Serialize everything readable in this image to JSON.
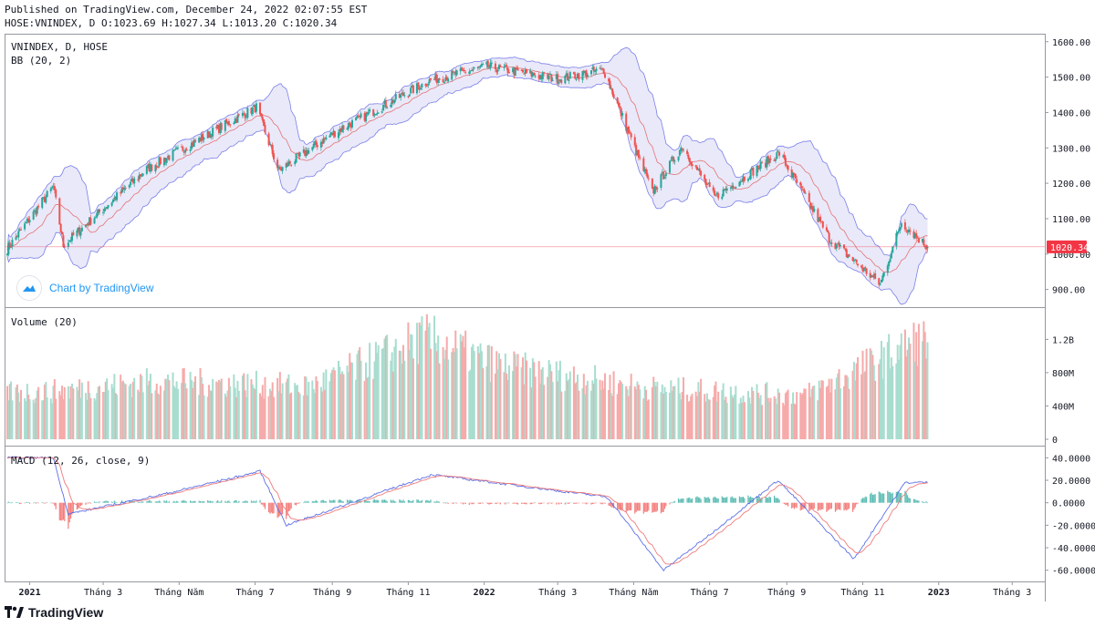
{
  "header": {
    "published": "Published on TradingView.com, December 24, 2022 02:07:55 EST",
    "symbol": "HOSE:VNINDEX, D",
    "open": "O:1023.69",
    "high": "H:1027.34",
    "low": "L:1013.20",
    "close": "C:1020.34"
  },
  "branding": {
    "watermark": "Chart by TradingView",
    "logo": "TradingView",
    "logo_icon": "tradingview-logo-icon"
  },
  "colors": {
    "up": "#26a69a",
    "down": "#ef5350",
    "up_volume": "#a8ddcf",
    "down_volume": "#f6aaaa",
    "bb_fill": "#e3e4f7",
    "bb_band": "#7b7fe8",
    "bb_basis": "#e57373",
    "macd": "#5b6fe6",
    "signal": "#ef7b7b",
    "last_price": "#f23645"
  },
  "chart_data": [
    {
      "type": "candlestick",
      "title": "VNINDEX, D, HOSE",
      "indicator": "BB (20, 2)",
      "ylim": [
        850,
        1620
      ],
      "y_ticks": [
        "1600.00",
        "1500.00",
        "1400.00",
        "1300.00",
        "1200.00",
        "1100.00",
        "1000.00",
        "900.00"
      ],
      "last_price_label": "1020.34",
      "last_price": 1020.34,
      "x_ticks": [
        "2021",
        "Tháng 3",
        "Tháng Năm",
        "Tháng 7",
        "Tháng 9",
        "Tháng 11",
        "2022",
        "Tháng 3",
        "Tháng Năm",
        "Tháng 7",
        "Tháng 9",
        "Tháng 11",
        "2023",
        "Tháng 3"
      ],
      "key_points": [
        {
          "date": "2020-12-14",
          "close": 1015
        },
        {
          "date": "2021-01-20",
          "close": 1190
        },
        {
          "date": "2021-01-28",
          "close": 1025
        },
        {
          "date": "2021-04-05",
          "close": 1240
        },
        {
          "date": "2021-07-02",
          "close": 1415
        },
        {
          "date": "2021-07-20",
          "close": 1235
        },
        {
          "date": "2021-09-01",
          "close": 1340
        },
        {
          "date": "2021-11-18",
          "close": 1490
        },
        {
          "date": "2022-01-03",
          "close": 1530
        },
        {
          "date": "2022-03-01",
          "close": 1495
        },
        {
          "date": "2022-04-07",
          "close": 1520
        },
        {
          "date": "2022-05-16",
          "close": 1175
        },
        {
          "date": "2022-06-09",
          "close": 1305
        },
        {
          "date": "2022-07-05",
          "close": 1160
        },
        {
          "date": "2022-08-26",
          "close": 1285
        },
        {
          "date": "2022-10-06",
          "close": 1040
        },
        {
          "date": "2022-11-15",
          "close": 915
        },
        {
          "date": "2022-12-02",
          "close": 1090
        },
        {
          "date": "2022-12-23",
          "close": 1020.34
        }
      ]
    },
    {
      "type": "bar",
      "title": "Volume (20)",
      "ylim": [
        0,
        1500000000
      ],
      "y_ticks": [
        "1.2B",
        "800M",
        "400M",
        "0"
      ],
      "key_points": [
        {
          "date": "2021-01",
          "volume": 650000000
        },
        {
          "date": "2021-04",
          "volume": 800000000
        },
        {
          "date": "2021-08",
          "volume": 720000000
        },
        {
          "date": "2021-11",
          "volume": 1400000000
        },
        {
          "date": "2022-01",
          "volume": 1000000000
        },
        {
          "date": "2022-05",
          "volume": 700000000
        },
        {
          "date": "2022-09",
          "volume": 600000000
        },
        {
          "date": "2022-12",
          "volume": 1350000000
        }
      ]
    },
    {
      "type": "line",
      "title": "MACD (12, 26, close, 9)",
      "ylim": [
        -70,
        50
      ],
      "y_ticks": [
        "40.0000",
        "20.0000",
        "0.0000",
        "-20.0000",
        "-40.0000",
        "-60.0000"
      ],
      "series": [
        {
          "name": "MACD",
          "key_points": [
            {
              "date": "2021-01-20",
              "value": 40
            },
            {
              "date": "2021-02-01",
              "value": -10
            },
            {
              "date": "2021-04-20",
              "value": 8
            },
            {
              "date": "2021-07-05",
              "value": 28
            },
            {
              "date": "2021-07-26",
              "value": -20
            },
            {
              "date": "2021-11-20",
              "value": 25
            },
            {
              "date": "2022-04-10",
              "value": 5
            },
            {
              "date": "2022-05-25",
              "value": -60
            },
            {
              "date": "2022-07-05",
              "value": -25
            },
            {
              "date": "2022-08-25",
              "value": 20
            },
            {
              "date": "2022-10-25",
              "value": -50
            },
            {
              "date": "2022-12-05",
              "value": 18
            }
          ]
        },
        {
          "name": "Signal",
          "key_points": [
            {
              "date": "2021-01-25",
              "value": 32
            },
            {
              "date": "2021-07-10",
              "value": 25
            },
            {
              "date": "2022-06-05",
              "value": -55
            },
            {
              "date": "2022-11-05",
              "value": -45
            },
            {
              "date": "2022-12-15",
              "value": 12
            }
          ]
        }
      ]
    }
  ]
}
